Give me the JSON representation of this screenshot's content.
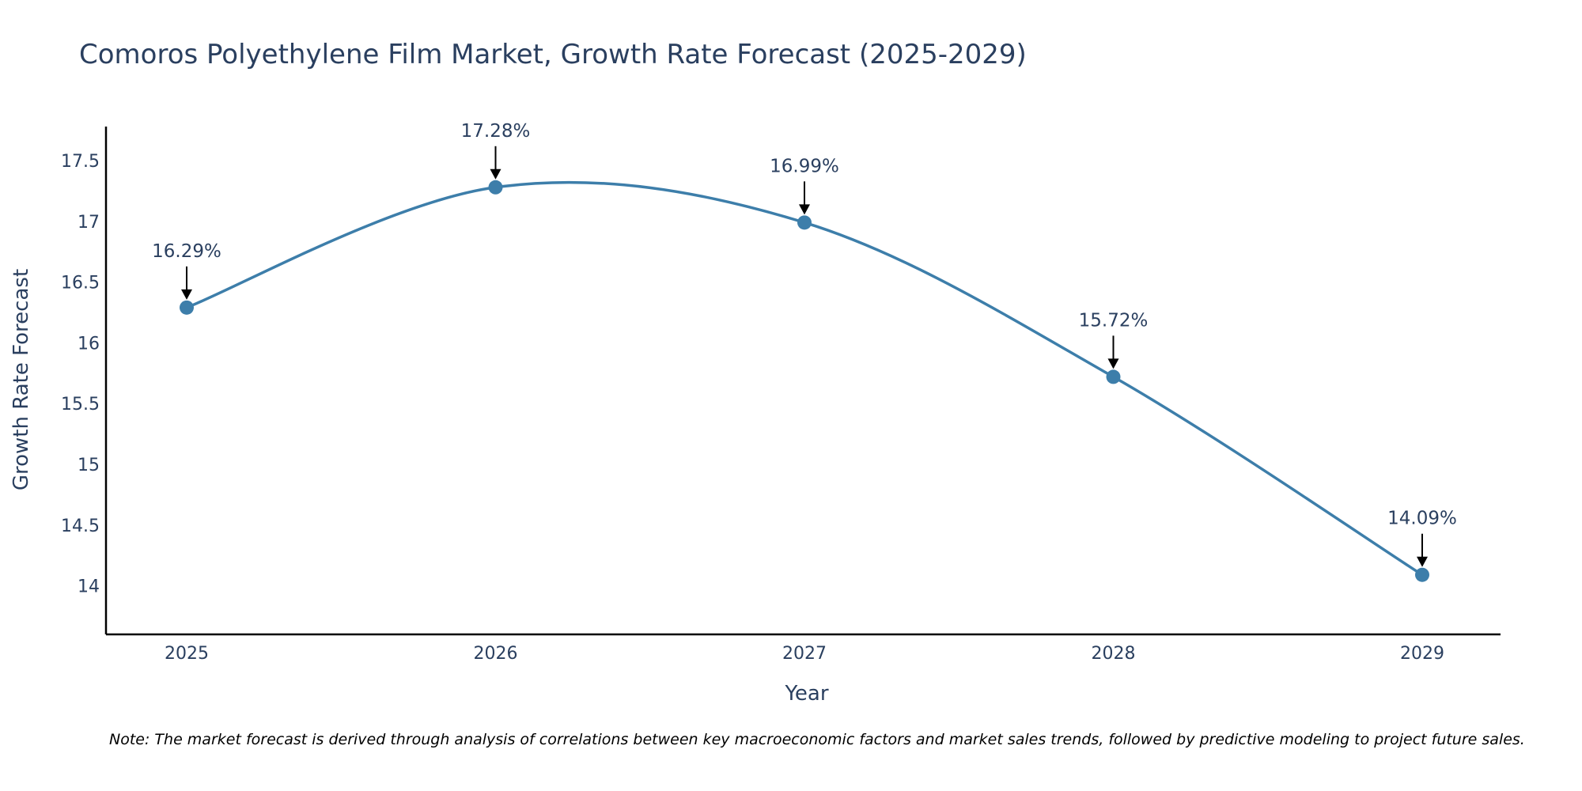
{
  "chart_data": {
    "type": "line",
    "title": "Comoros Polyethylene Film Market, Growth Rate Forecast (2025-2029)",
    "xlabel": "Year",
    "ylabel": "Growth Rate Forecast",
    "categories": [
      "2025",
      "2026",
      "2027",
      "2028",
      "2029"
    ],
    "values": [
      16.29,
      17.28,
      16.99,
      15.72,
      14.09
    ],
    "annotations": [
      "16.29%",
      "17.28%",
      "16.99%",
      "15.72%",
      "14.09%"
    ],
    "ylim": [
      13.6,
      17.78
    ],
    "yticks": [
      14,
      14.5,
      15,
      15.5,
      16,
      16.5,
      17,
      17.5
    ],
    "ytick_labels": [
      "14",
      "14.5",
      "15",
      "15.5",
      "16",
      "16.5",
      "17",
      "17.5"
    ],
    "grid": false,
    "line_color": "#3d7eaa",
    "marker_color": "#3d7eaa"
  },
  "note": "Note: The market forecast is derived through analysis of correlations between key macroeconomic factors and market sales trends, followed by predictive modeling to project future sales."
}
